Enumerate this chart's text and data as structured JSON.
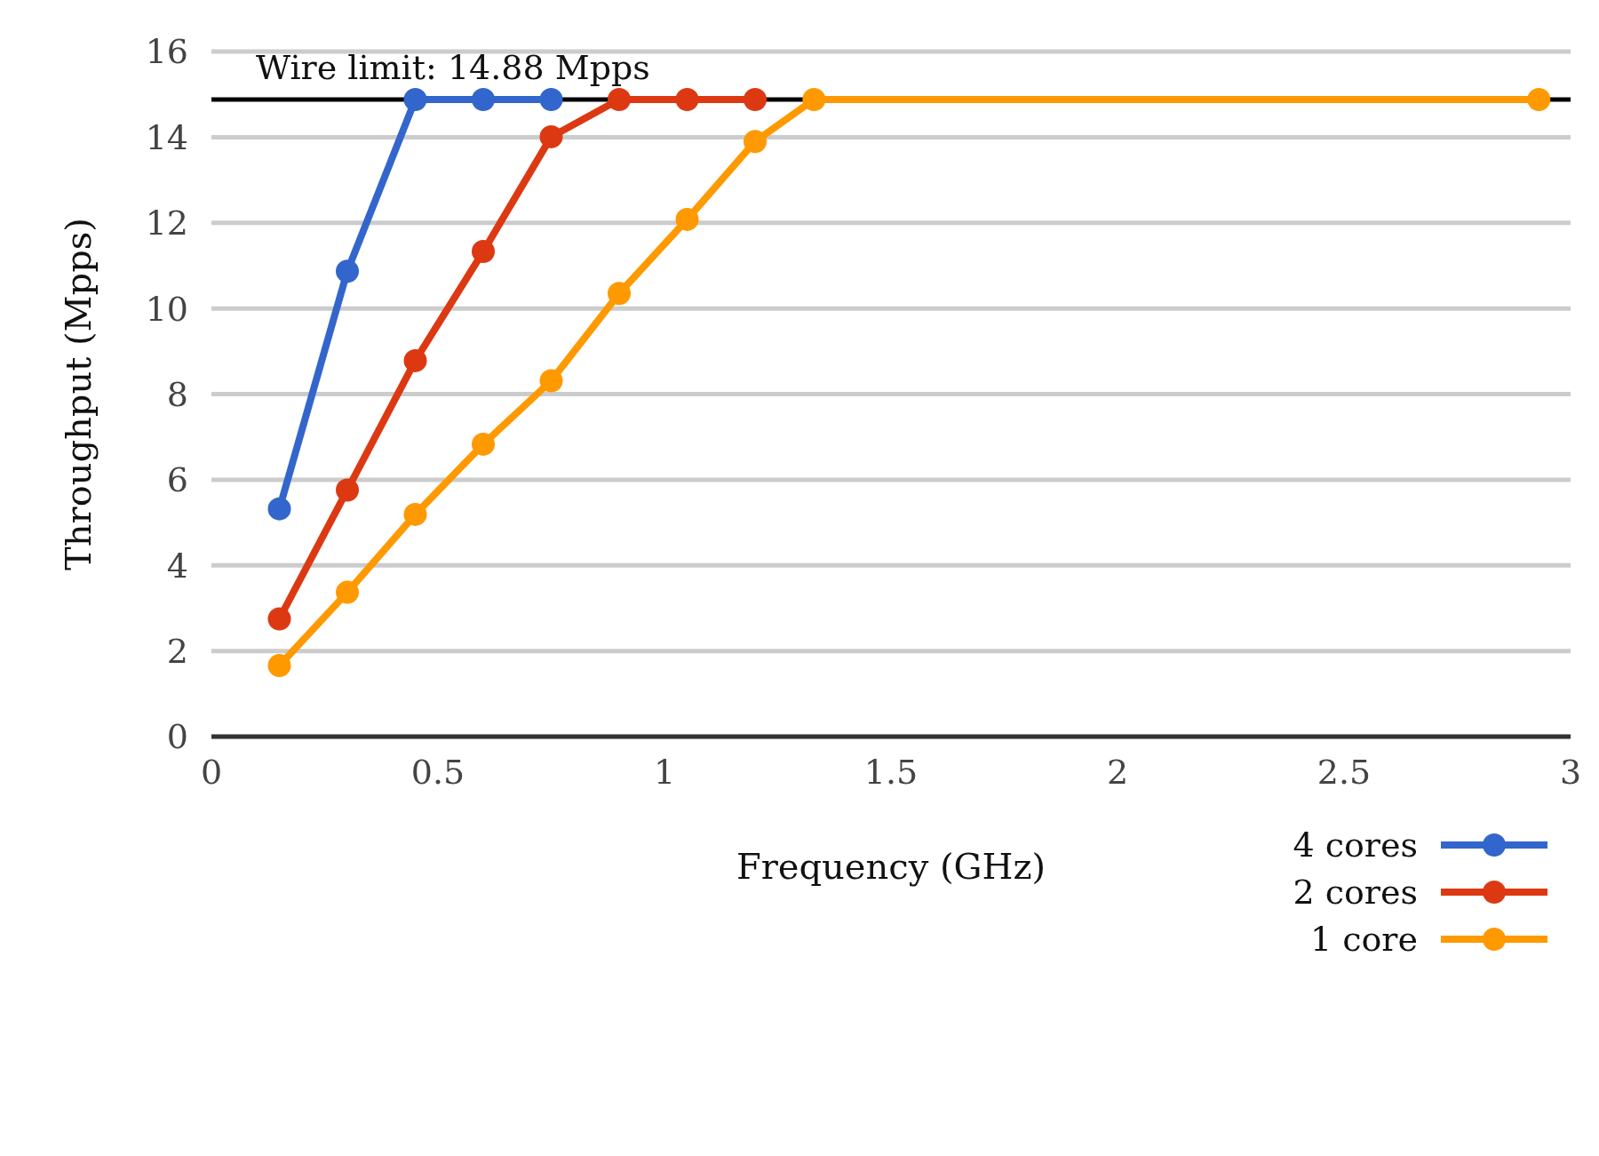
{
  "chart_data": {
    "type": "line",
    "xlabel": "Frequency (GHz)",
    "ylabel": "Throughput (Mpps)",
    "xlim": [
      0,
      3
    ],
    "xticks": [
      0,
      0.5,
      1,
      1.5,
      2,
      2.5,
      3
    ],
    "ylim": [
      0,
      16
    ],
    "yticks": [
      0,
      2,
      4,
      6,
      8,
      10,
      12,
      14,
      16
    ],
    "grid": "y",
    "legend": "bottom right",
    "marker": "circle",
    "line_style": "solid",
    "ref_lines": [
      {
        "axis": "y",
        "value": 14.88,
        "label": "Wire limit: 14.88 Mpps",
        "color": "#000000"
      }
    ],
    "series": [
      {
        "name": "4 cores",
        "color": "#3366cc",
        "x": [
          0.15,
          0.3,
          0.45,
          0.6,
          0.75
        ],
        "values": [
          5.32,
          10.87,
          14.88,
          14.88,
          14.88
        ]
      },
      {
        "name": "2 cores",
        "color": "#dc3912",
        "x": [
          0.15,
          0.3,
          0.45,
          0.6,
          0.75,
          0.9,
          1.05,
          1.2
        ],
        "values": [
          2.75,
          5.76,
          8.78,
          11.33,
          14.01,
          14.88,
          14.88,
          14.88
        ]
      },
      {
        "name": "1 core",
        "color": "#ff9900",
        "x": [
          0.15,
          0.3,
          0.45,
          0.6,
          0.75,
          0.9,
          1.05,
          1.2,
          1.33,
          2.93
        ],
        "values": [
          1.66,
          3.37,
          5.19,
          6.83,
          8.31,
          10.35,
          12.08,
          13.9,
          14.88,
          14.88
        ]
      }
    ]
  }
}
